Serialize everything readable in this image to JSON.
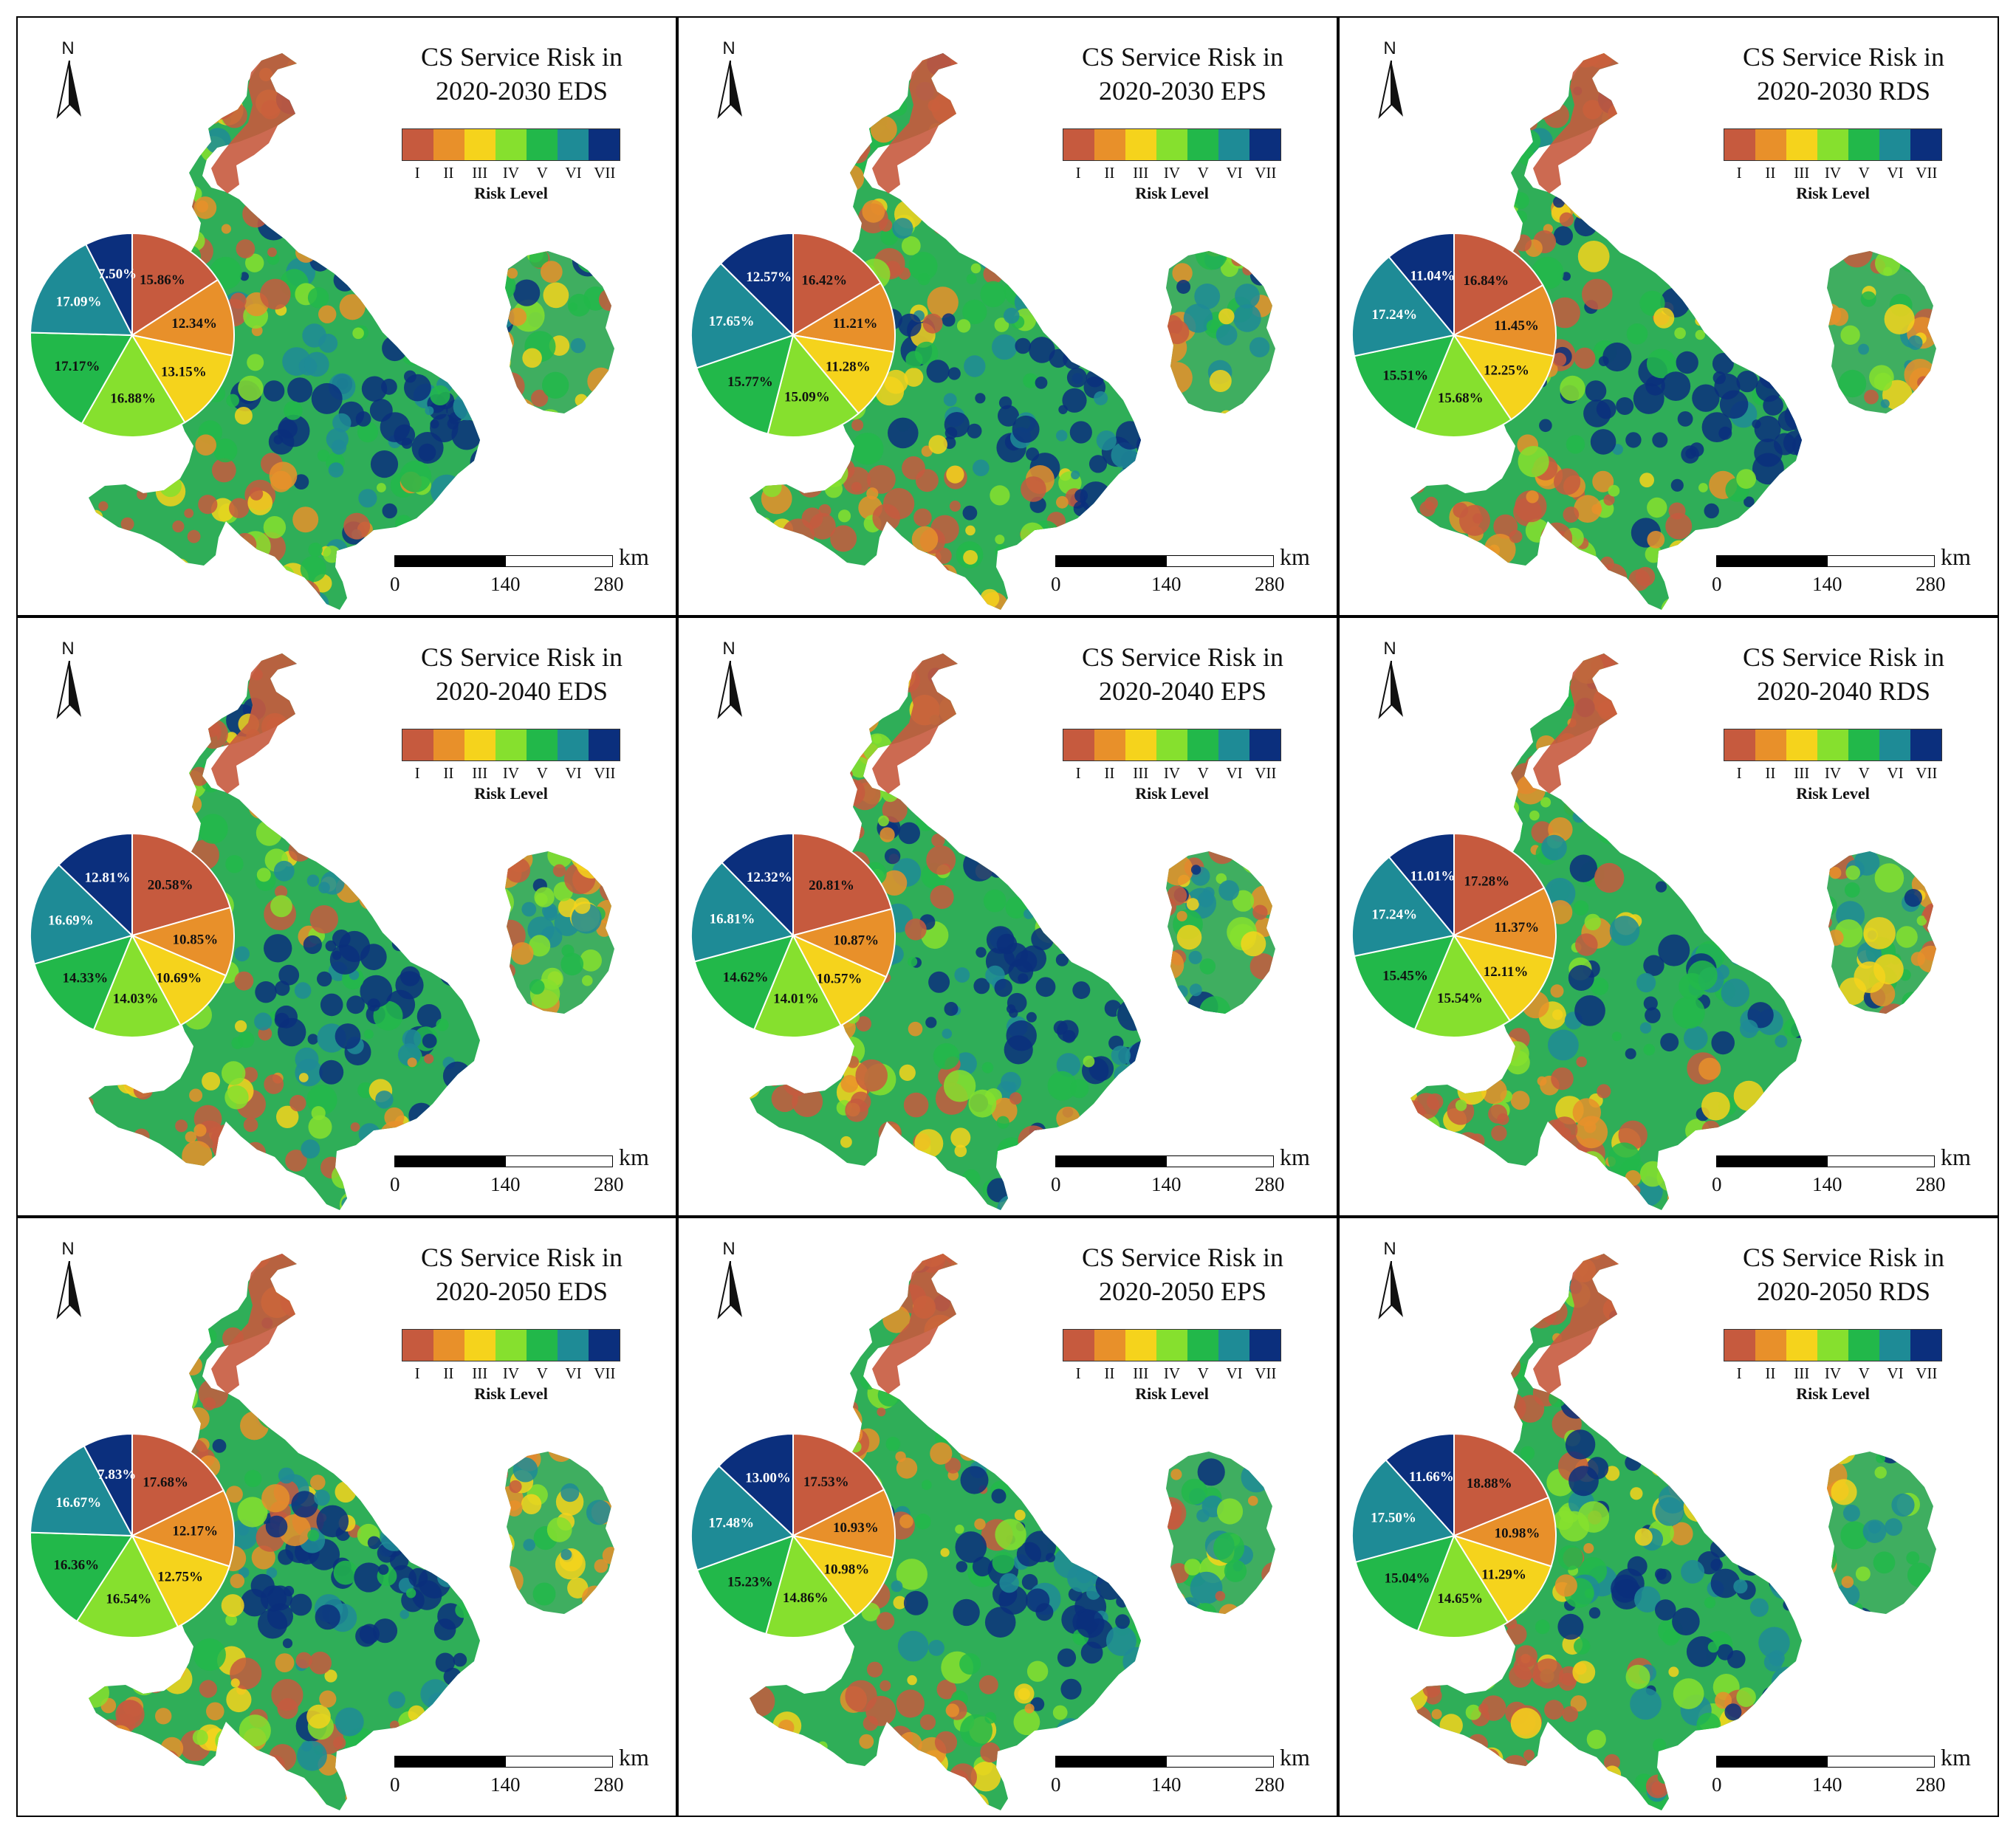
{
  "figure": {
    "north_label": "N",
    "legend_caption": "Risk Level",
    "legend_levels": [
      "I",
      "II",
      "III",
      "IV",
      "V",
      "VI",
      "VII"
    ],
    "legend_colors": [
      "#c65a3e",
      "#e8902a",
      "#f5d31c",
      "#86e02e",
      "#22b84a",
      "#1e8b96",
      "#0b2f7d"
    ],
    "scale": {
      "unit": "km",
      "ticks": [
        "0",
        "140",
        "280"
      ]
    },
    "pie_label_colors": [
      "#111111",
      "#111111",
      "#111111",
      "#111111",
      "#111111",
      "#ffffff",
      "#ffffff"
    ]
  },
  "panels": [
    {
      "title_line1": "CS Service Risk in",
      "title_line2": "2020-2030 EDS",
      "pie": {
        "values": [
          15.86,
          12.34,
          13.15,
          16.88,
          17.17,
          17.09,
          7.5
        ],
        "labels": [
          "15.86%",
          "12.34%",
          "13.15%",
          "16.88%",
          "17.17%",
          "17.09%",
          "7.50%"
        ]
      }
    },
    {
      "title_line1": "CS Service Risk in",
      "title_line2": "2020-2030 EPS",
      "pie": {
        "values": [
          16.42,
          11.21,
          11.28,
          15.09,
          15.77,
          17.65,
          12.57
        ],
        "labels": [
          "16.42%",
          "11.21%",
          "11.28%",
          "15.09%",
          "15.77%",
          "17.65%",
          "12.57%"
        ]
      }
    },
    {
      "title_line1": "CS Service Risk in",
      "title_line2": "2020-2030 RDS",
      "pie": {
        "values": [
          16.84,
          11.45,
          12.25,
          15.68,
          15.51,
          17.24,
          11.04
        ],
        "labels": [
          "16.84%",
          "11.45%",
          "12.25%",
          "15.68%",
          "15.51%",
          "17.24%",
          "11.04%"
        ]
      }
    },
    {
      "title_line1": "CS Service Risk in",
      "title_line2": "2020-2040 EDS",
      "pie": {
        "values": [
          20.58,
          10.85,
          10.69,
          14.03,
          14.33,
          16.69,
          12.81
        ],
        "labels": [
          "20.58%",
          "10.85%",
          "10.69%",
          "14.03%",
          "14.33%",
          "16.69%",
          "12.81%"
        ]
      }
    },
    {
      "title_line1": "CS Service Risk in",
      "title_line2": "2020-2040 EPS",
      "pie": {
        "values": [
          20.81,
          10.87,
          10.57,
          14.01,
          14.62,
          16.81,
          12.32
        ],
        "labels": [
          "20.81%",
          "10.87%",
          "10.57%",
          "14.01%",
          "14.62%",
          "16.81%",
          "12.32%"
        ]
      }
    },
    {
      "title_line1": "CS Service Risk in",
      "title_line2": "2020-2040 RDS",
      "pie": {
        "values": [
          17.28,
          11.37,
          12.11,
          15.54,
          15.45,
          17.24,
          11.01
        ],
        "labels": [
          "17.28%",
          "11.37%",
          "12.11%",
          "15.54%",
          "15.45%",
          "17.24%",
          "11.01%"
        ]
      }
    },
    {
      "title_line1": "CS Service Risk in",
      "title_line2": "2020-2050 EDS",
      "pie": {
        "values": [
          17.68,
          12.17,
          12.75,
          16.54,
          16.36,
          16.67,
          7.83
        ],
        "labels": [
          "17.68%",
          "12.17%",
          "12.75%",
          "16.54%",
          "16.36%",
          "16.67%",
          "7.83%"
        ]
      }
    },
    {
      "title_line1": "CS Service Risk in",
      "title_line2": "2020-2050 EPS",
      "pie": {
        "values": [
          17.53,
          10.93,
          10.98,
          14.86,
          15.23,
          17.48,
          13.0
        ],
        "labels": [
          "17.53%",
          "10.93%",
          "10.98%",
          "14.86%",
          "15.23%",
          "17.48%",
          "13.00%"
        ]
      }
    },
    {
      "title_line1": "CS Service Risk in",
      "title_line2": "2020-2050 RDS",
      "pie": {
        "values": [
          18.88,
          10.98,
          11.29,
          14.65,
          15.04,
          17.5,
          11.66
        ],
        "labels": [
          "18.88%",
          "10.98%",
          "11.29%",
          "14.65%",
          "15.04%",
          "17.50%",
          "11.66%"
        ]
      }
    }
  ]
}
